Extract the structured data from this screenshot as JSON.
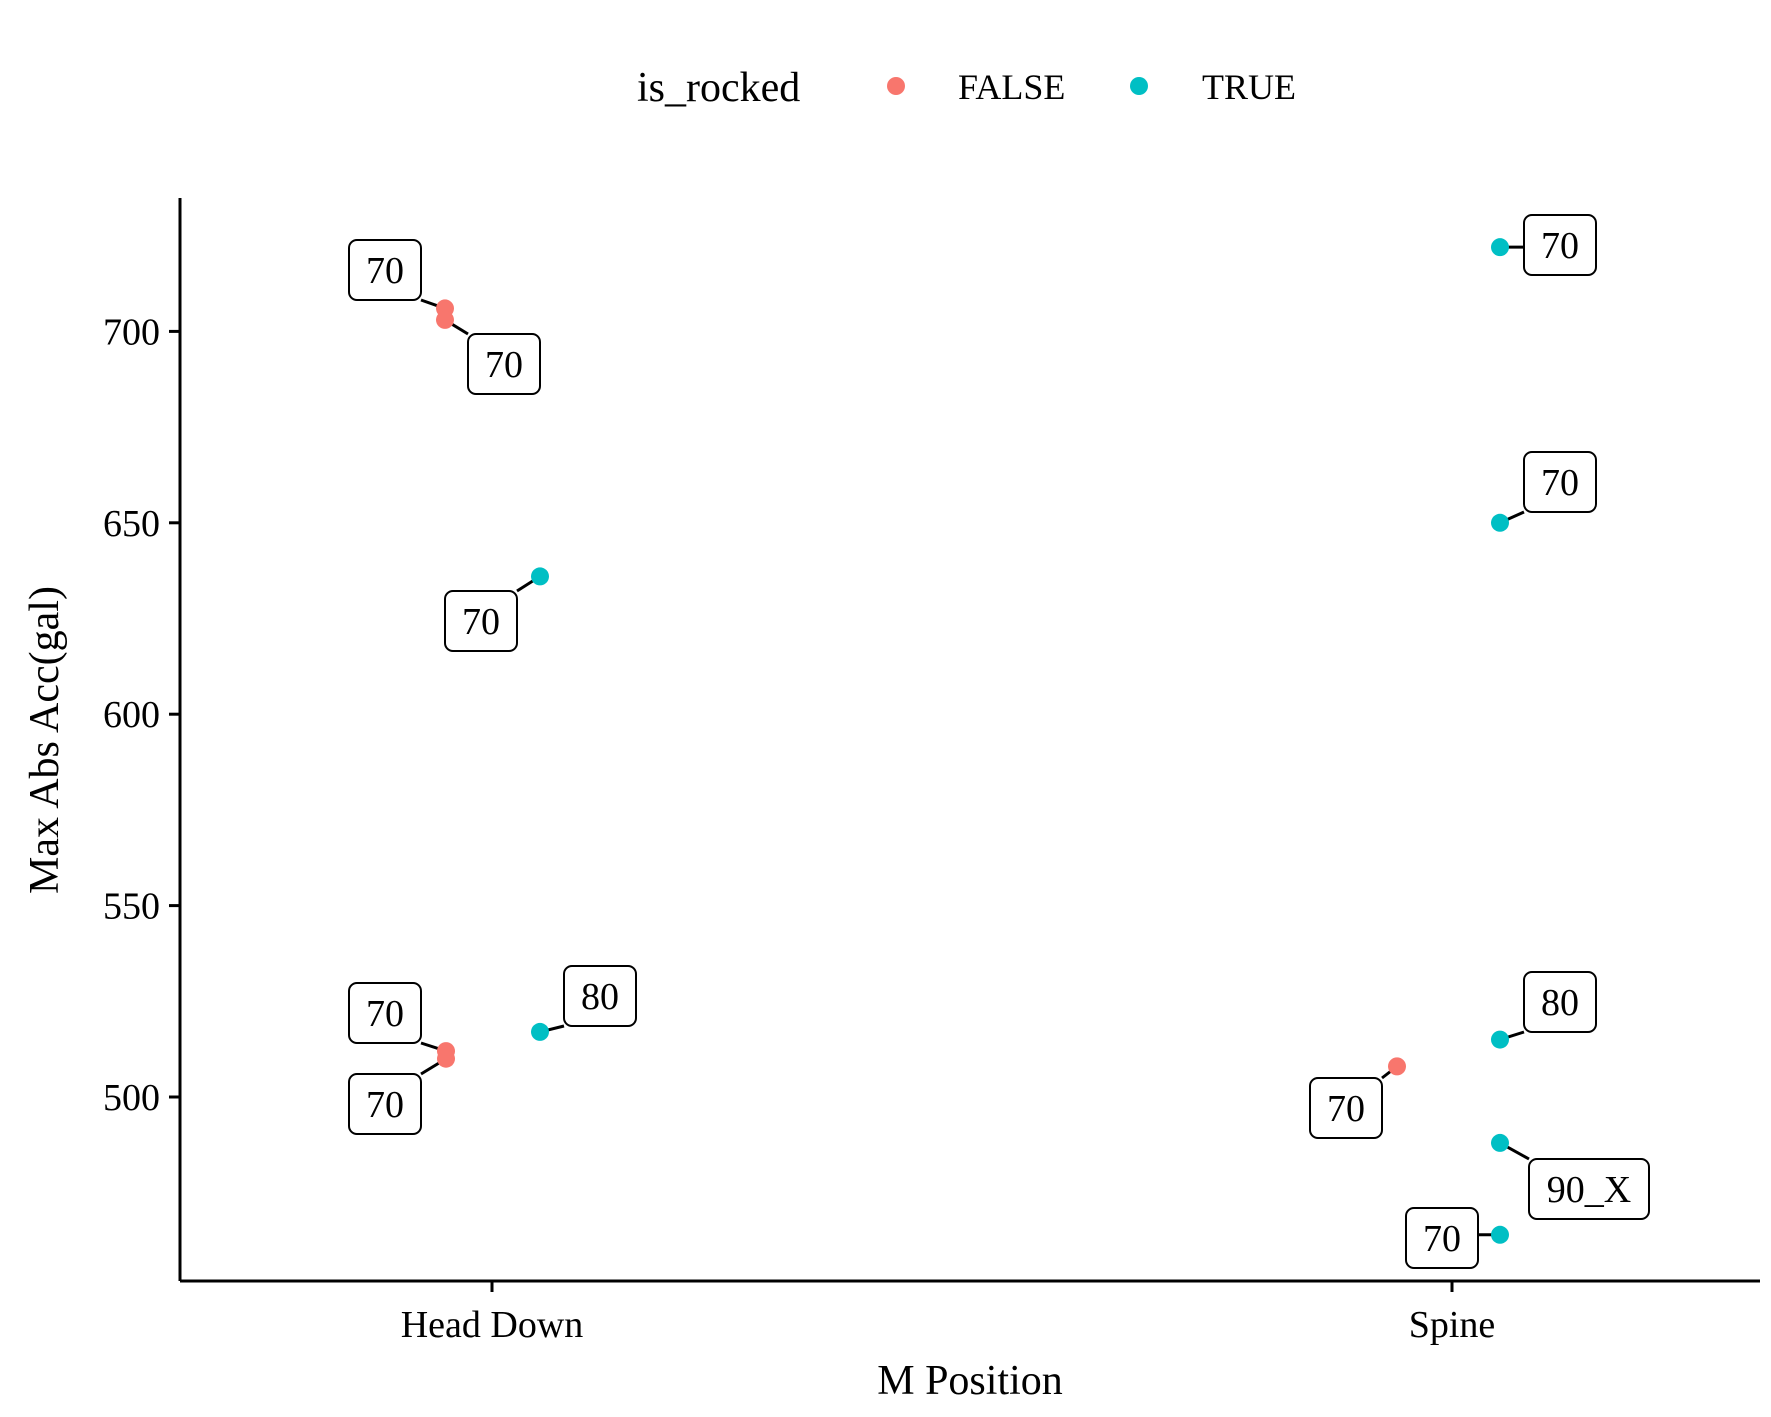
{
  "chart_data": {
    "type": "scatter",
    "xlabel": "M Position",
    "ylabel": "Max Abs Acc(gal)",
    "categories": [
      "Head Down",
      "Spine"
    ],
    "yticks": [
      500,
      550,
      600,
      650,
      700
    ],
    "ylim": [
      452,
      735
    ],
    "grid": false,
    "legend": {
      "title": "is_rocked",
      "placement": "top",
      "entries": [
        {
          "label": "FALSE",
          "color": "#F8766D"
        },
        {
          "label": "TRUE",
          "color": "#00BFC4"
        }
      ]
    },
    "series": [
      {
        "name": "FALSE",
        "color": "#F8766D",
        "points": [
          {
            "x": "Head Down",
            "y": 706,
            "label": "70"
          },
          {
            "x": "Head Down",
            "y": 703,
            "label": "70"
          },
          {
            "x": "Head Down",
            "y": 512,
            "label": "70"
          },
          {
            "x": "Head Down",
            "y": 510,
            "label": "70"
          },
          {
            "x": "Spine",
            "y": 508,
            "label": "70"
          }
        ]
      },
      {
        "name": "TRUE",
        "color": "#00BFC4",
        "points": [
          {
            "x": "Head Down",
            "y": 636,
            "label": "70"
          },
          {
            "x": "Head Down",
            "y": 517,
            "label": "80"
          },
          {
            "x": "Spine",
            "y": 722,
            "label": "70"
          },
          {
            "x": "Spine",
            "y": 650,
            "label": "70"
          },
          {
            "x": "Spine",
            "y": 515,
            "label": "80"
          },
          {
            "x": "Spine",
            "y": 488,
            "label": "90_X"
          },
          {
            "x": "Spine",
            "y": 464,
            "label": "70"
          }
        ]
      }
    ]
  }
}
